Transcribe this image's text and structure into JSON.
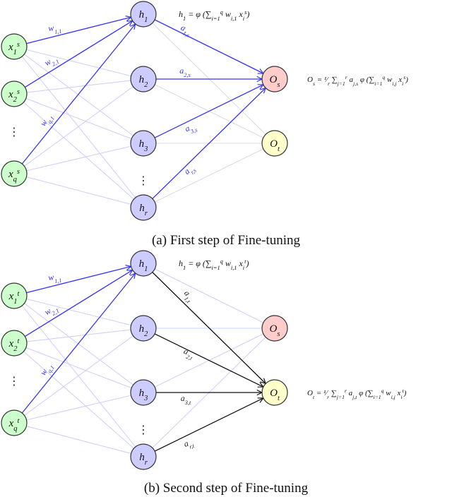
{
  "colors": {
    "input_fill": "#ccffcc",
    "hidden_fill": "#ccccff",
    "source_output_fill": "#ffcccc",
    "target_output_fill": "#ffffcc",
    "node_stroke": "#333333",
    "active_blue": "#3333ff",
    "faint_blue": "#d0d0fa",
    "faint_gray": "#dcdcdc",
    "active_black": "#111111"
  },
  "panels": [
    {
      "id": "a",
      "caption": "(a) First step of Fine-tuning",
      "inputs": [
        "x_1^s",
        "x_2^s",
        "x_q^s"
      ],
      "hidden": [
        "h_1",
        "h_2",
        "h_3",
        "h_r"
      ],
      "outputs": [
        "O_s",
        "O_t"
      ],
      "input_weight_labels": [
        "w_{1,1}",
        "w_{2,1}",
        "w_{q,1}"
      ],
      "output_weight_labels": [
        "a_{1,s}",
        "a_{2,s}",
        "a_{3,s}",
        "a_{r,s}"
      ],
      "active_output": "O_s",
      "hidden_formula": "h_1 = φ (∑_{i=1}^q w_{i,1} x_i^s)",
      "output_formula": "O_s = ¹⁄_r ∑_{j=1}^r a_{j,s} φ (∑_{i=1}^q w_{i,j} x_i^s)"
    },
    {
      "id": "b",
      "caption": "(b) Second step of Fine-tuning",
      "inputs": [
        "x_1^t",
        "x_2^t",
        "x_q^t"
      ],
      "hidden": [
        "h_1",
        "h_2",
        "h_3",
        "h_r"
      ],
      "outputs": [
        "O_s",
        "O_t"
      ],
      "input_weight_labels": [
        "w_{1,1}",
        "w_{2,1}",
        "w_{q,1}"
      ],
      "output_weight_labels": [
        "a_{1,t}",
        "a_{2,t}",
        "a_{3,t}",
        "a_{r,t}"
      ],
      "active_output": "O_t",
      "hidden_formula": "h_1 = φ (∑_{i=1}^q w_{i,1} x_i^t)",
      "output_formula": "O_t = ¹⁄_r ∑_{j=1}^r a_{j,t} φ (∑_{i=1}^q w_{i,j} x_i^t)"
    }
  ],
  "ellipsis": "⋮"
}
